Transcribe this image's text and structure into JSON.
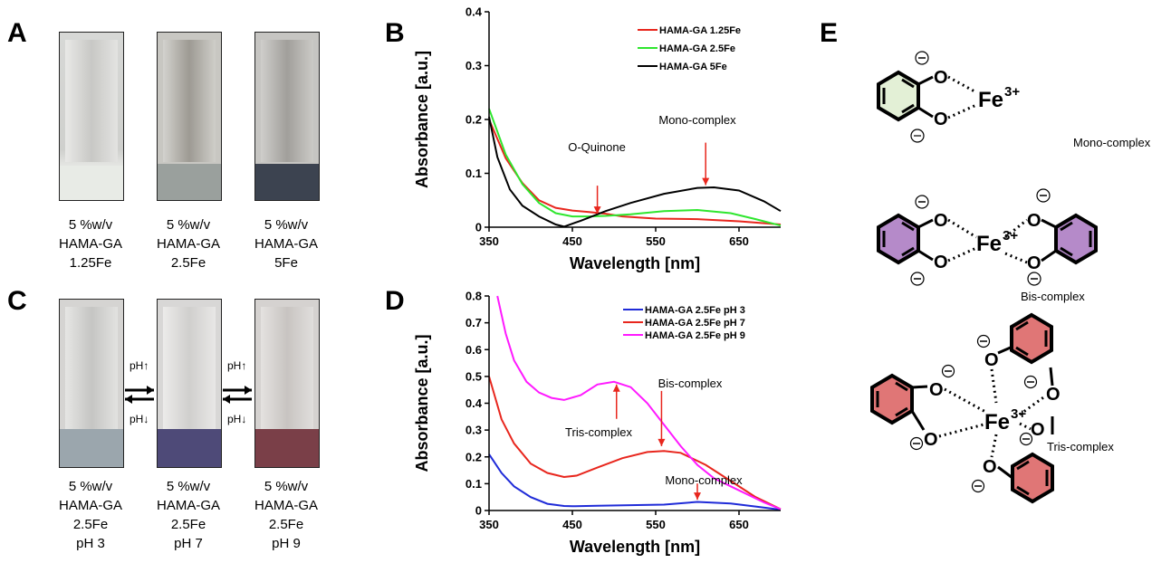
{
  "panels": {
    "A": "A",
    "B": "B",
    "C": "C",
    "D": "D",
    "E": "E"
  },
  "vials_top": [
    {
      "line1": "5 %w/v",
      "line2": "HAMA-GA",
      "line3": "1.25Fe"
    },
    {
      "line1": "5 %w/v",
      "line2": "HAMA-GA",
      "line3": "2.5Fe"
    },
    {
      "line1": "5 %w/v",
      "line2": "HAMA-GA",
      "line3": "5Fe"
    }
  ],
  "vials_bottom": [
    {
      "line1": "5 %w/v",
      "line2": "HAMA-GA",
      "line3": "2.5Fe",
      "line4": "pH 3"
    },
    {
      "line1": "5 %w/v",
      "line2": "HAMA-GA",
      "line3": "2.5Fe",
      "line4": "pH 7"
    },
    {
      "line1": "5 %w/v",
      "line2": "HAMA-GA",
      "line3": "2.5Fe",
      "line4": "pH 9"
    }
  ],
  "ph_labels": {
    "up": "pH↑",
    "down": "pH↓"
  },
  "structures": {
    "fe_label": "Fe",
    "fe_charge": "3+",
    "oxygen": "O",
    "mono_label": "Mono-complex",
    "bis_label": "Bis-complex",
    "tris_label": "Tris-complex"
  },
  "colors": {
    "red": "#e8261d",
    "green": "#2ee62e",
    "black": "#000000",
    "blue": "#1f2bd8",
    "magenta": "#ff19ff",
    "mono_ring": "#e3f0d6",
    "bis_ring": "#b58ac9",
    "tris_ring": "#e07676"
  },
  "chart_data": [
    {
      "type": "line",
      "panel": "B",
      "xlabel": "Wavelength [nm]",
      "ylabel": "Absorbance [a.u.]",
      "xlim": [
        350,
        700
      ],
      "ylim": [
        0,
        0.4
      ],
      "xticks": [
        350,
        450,
        550,
        650
      ],
      "yticks": [
        0,
        0.1,
        0.2,
        0.3,
        0.4
      ],
      "xtick_labels": [
        "350",
        "450",
        "550",
        "650"
      ],
      "ytick_labels": [
        "0",
        "0.1",
        "0.2",
        "0.3",
        "0.4"
      ],
      "legend_position": "top-right",
      "series": [
        {
          "name": "HAMA-GA 1.25Fe",
          "color": "#e8261d",
          "x": [
            350,
            370,
            390,
            410,
            430,
            450,
            470,
            490,
            510,
            550,
            600,
            650,
            700
          ],
          "y": [
            0.2,
            0.128,
            0.082,
            0.05,
            0.036,
            0.031,
            0.028,
            0.025,
            0.02,
            0.016,
            0.015,
            0.011,
            0.005
          ]
        },
        {
          "name": "HAMA-GA 2.5Fe",
          "color": "#2ee62e",
          "x": [
            350,
            370,
            390,
            410,
            430,
            450,
            470,
            490,
            520,
            560,
            600,
            640,
            670,
            700
          ],
          "y": [
            0.22,
            0.135,
            0.08,
            0.045,
            0.026,
            0.02,
            0.02,
            0.021,
            0.024,
            0.03,
            0.032,
            0.026,
            0.015,
            0.003
          ]
        },
        {
          "name": "HAMA-GA 5Fe",
          "color": "#000000",
          "x": [
            350,
            360,
            375,
            390,
            410,
            430,
            440,
            460,
            490,
            520,
            560,
            600,
            620,
            650,
            680,
            700
          ],
          "y": [
            0.205,
            0.13,
            0.07,
            0.04,
            0.02,
            0.005,
            0.001,
            0.012,
            0.03,
            0.045,
            0.062,
            0.073,
            0.074,
            0.068,
            0.048,
            0.03
          ]
        }
      ],
      "annotations": [
        {
          "text": "O-Quinone",
          "arrow_x": 480,
          "arrow_y": 0.025
        },
        {
          "text": "Mono-complex",
          "arrow_x": 610,
          "arrow_y": 0.078
        }
      ]
    },
    {
      "type": "line",
      "panel": "D",
      "xlabel": "Wavelength [nm]",
      "ylabel": "Absorbance [a.u.]",
      "xlim": [
        350,
        700
      ],
      "ylim": [
        0,
        0.8
      ],
      "xticks": [
        350,
        450,
        550,
        650
      ],
      "yticks": [
        0,
        0.1,
        0.2,
        0.3,
        0.4,
        0.5,
        0.6,
        0.7,
        0.8
      ],
      "xtick_labels": [
        "350",
        "450",
        "550",
        "650"
      ],
      "ytick_labels": [
        "0",
        "0.1",
        "0.2",
        "0.3",
        "0.4",
        "0.5",
        "0.6",
        "0.7",
        "0.8"
      ],
      "legend_position": "top-right",
      "series": [
        {
          "name": "HAMA-GA 2.5Fe pH 3",
          "color": "#1f2bd8",
          "x": [
            350,
            365,
            380,
            400,
            420,
            440,
            450,
            480,
            520,
            560,
            600,
            640,
            670,
            700
          ],
          "y": [
            0.21,
            0.14,
            0.09,
            0.05,
            0.025,
            0.017,
            0.016,
            0.018,
            0.02,
            0.022,
            0.032,
            0.026,
            0.015,
            0.003
          ]
        },
        {
          "name": "HAMA-GA 2.5Fe pH 7",
          "color": "#e8261d",
          "x": [
            350,
            365,
            380,
            400,
            420,
            440,
            455,
            480,
            510,
            540,
            560,
            580,
            610,
            640,
            670,
            700
          ],
          "y": [
            0.5,
            0.34,
            0.25,
            0.175,
            0.14,
            0.125,
            0.13,
            0.16,
            0.195,
            0.218,
            0.222,
            0.215,
            0.17,
            0.11,
            0.05,
            0.005
          ]
        },
        {
          "name": "HAMA-GA 2.5Fe pH 9",
          "color": "#ff19ff",
          "x": [
            360,
            370,
            380,
            395,
            410,
            425,
            440,
            460,
            480,
            500,
            520,
            540,
            560,
            580,
            600,
            620,
            640,
            660,
            680,
            700
          ],
          "y": [
            0.8,
            0.66,
            0.56,
            0.48,
            0.44,
            0.42,
            0.412,
            0.43,
            0.47,
            0.48,
            0.46,
            0.4,
            0.32,
            0.24,
            0.17,
            0.12,
            0.09,
            0.06,
            0.03,
            0.005
          ]
        }
      ],
      "annotations": [
        {
          "text": "Bis-complex",
          "arrow_x": 557,
          "arrow_y": 0.24
        },
        {
          "text": "Tris-complex",
          "arrow_x": 503,
          "arrow_y": 0.47
        },
        {
          "text": "Mono-complex",
          "arrow_x": 600,
          "arrow_y": 0.04
        }
      ]
    }
  ]
}
